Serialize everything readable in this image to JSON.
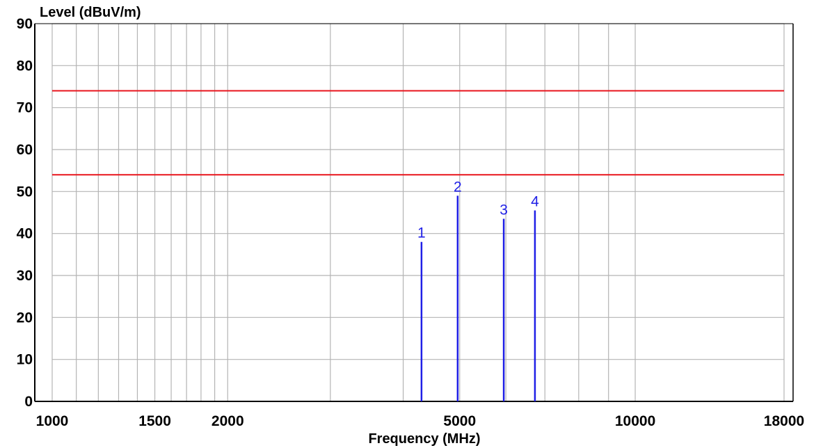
{
  "chart_data": {
    "type": "bar",
    "ylabel": "Level (dBuV/m)",
    "xlabel": "Frequency (MHz)",
    "x_scale": "log",
    "xlim": [
      1000,
      18000
    ],
    "ylim": [
      0,
      90
    ],
    "grid": true,
    "y_ticks": [
      0,
      10,
      20,
      30,
      40,
      50,
      60,
      70,
      80,
      90
    ],
    "x_tick_labels": [
      1000,
      1500,
      2000,
      5000,
      10000,
      18000
    ],
    "x_gridlines": [
      1000,
      1100,
      1200,
      1300,
      1400,
      1500,
      1600,
      1700,
      1800,
      1900,
      2000,
      3000,
      4000,
      5000,
      6000,
      7000,
      8000,
      9000,
      10000,
      18000
    ],
    "limit_lines": [
      {
        "y": 74,
        "color": "#e8141c"
      },
      {
        "y": 54,
        "color": "#e8141c"
      }
    ],
    "markers": [
      {
        "label": "1",
        "frequency": 4300,
        "level": 38
      },
      {
        "label": "2",
        "frequency": 4960,
        "level": 49
      },
      {
        "label": "3",
        "frequency": 5950,
        "level": 43.5
      },
      {
        "label": "4",
        "frequency": 6730,
        "level": 45.5
      }
    ],
    "colors": {
      "marker": "#1f1fe6",
      "grid": "#b4b4b4",
      "axis": "#000000"
    }
  }
}
